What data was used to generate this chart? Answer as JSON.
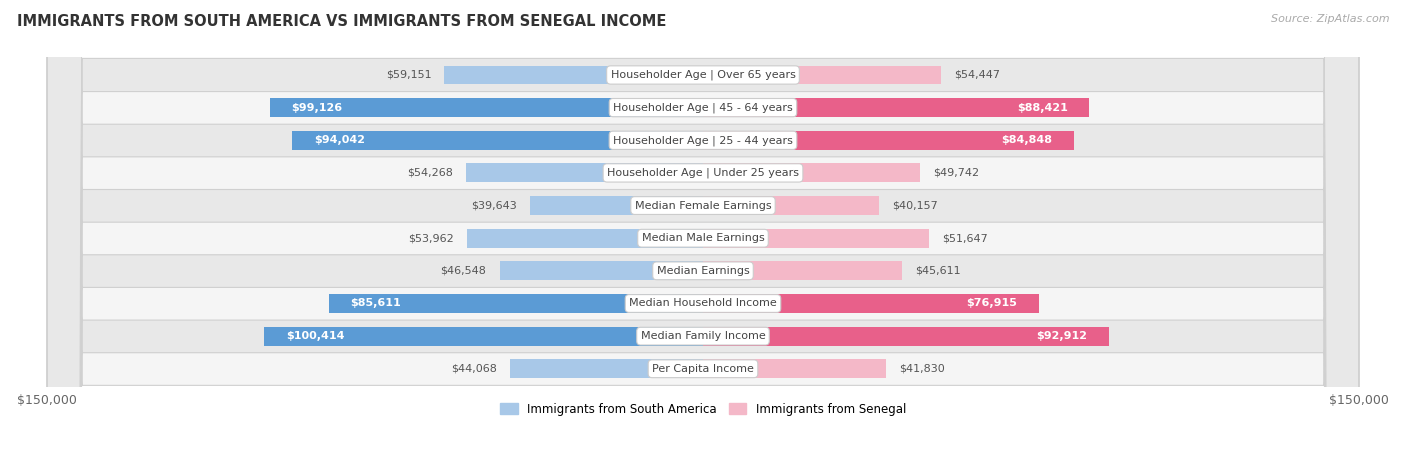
{
  "title": "IMMIGRANTS FROM SOUTH AMERICA VS IMMIGRANTS FROM SENEGAL INCOME",
  "source": "Source: ZipAtlas.com",
  "categories": [
    "Per Capita Income",
    "Median Family Income",
    "Median Household Income",
    "Median Earnings",
    "Median Male Earnings",
    "Median Female Earnings",
    "Householder Age | Under 25 years",
    "Householder Age | 25 - 44 years",
    "Householder Age | 45 - 64 years",
    "Householder Age | Over 65 years"
  ],
  "south_america": [
    44068,
    100414,
    85611,
    46548,
    53962,
    39643,
    54268,
    94042,
    99126,
    59151
  ],
  "senegal": [
    41830,
    92912,
    76915,
    45611,
    51647,
    40157,
    49742,
    84848,
    88421,
    54447
  ],
  "sa_color_light": "#a8c8e8",
  "sa_color_dark": "#5b9bd5",
  "sen_color_light": "#f4b8c8",
  "sen_color_dark": "#e8608a",
  "row_bg_light": "#f5f5f5",
  "row_bg_dark": "#e8e8e8",
  "row_border": "#d0d0d0",
  "max_val": 150000,
  "inside_threshold": 70000,
  "legend_sa": "Immigrants from South America",
  "legend_sen": "Immigrants from Senegal"
}
